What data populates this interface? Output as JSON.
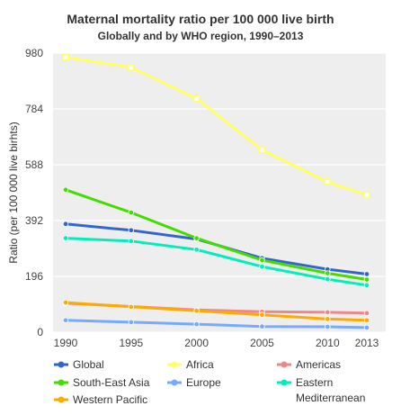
{
  "chart_data": {
    "type": "line",
    "title": "Maternal mortality ratio per 100 000 live birth",
    "subtitle": "Globally and by WHO region, 1990–2013",
    "ylabel": "Ratio (per 100 000 live birhts)",
    "xlabel": "",
    "x": [
      1990,
      1995,
      2000,
      2005,
      2010,
      2013
    ],
    "ylim": [
      0,
      980
    ],
    "yticks": [
      0,
      196,
      392,
      588,
      784,
      980
    ],
    "grid": true,
    "legend_position": "bottom",
    "series": [
      {
        "name": "Global",
        "color": "#3366cc",
        "marker": "circle",
        "values": [
          380,
          358,
          327,
          260,
          221,
          204
        ]
      },
      {
        "name": "Africa",
        "color": "#ffff66",
        "marker": "square",
        "values": [
          965,
          930,
          820,
          640,
          528,
          482
        ]
      },
      {
        "name": "Americas",
        "color": "#ee8888",
        "marker": "circle",
        "values": [
          102,
          90,
          78,
          72,
          70,
          67
        ]
      },
      {
        "name": "South-East Asia",
        "color": "#44dd00",
        "marker": "circle",
        "values": [
          500,
          420,
          330,
          253,
          207,
          185
        ]
      },
      {
        "name": "Europe",
        "color": "#77aaff",
        "marker": "circle",
        "values": [
          42,
          35,
          28,
          20,
          19,
          16
        ]
      },
      {
        "name": "Eastern Mediterranean",
        "color": "#00eebb",
        "marker": "circle",
        "values": [
          330,
          320,
          290,
          230,
          186,
          165
        ]
      },
      {
        "name": "Western Pacific",
        "color": "#ffaa00",
        "marker": "circle",
        "values": [
          104,
          89,
          75,
          61,
          46,
          42
        ]
      }
    ]
  },
  "legend": {
    "items": [
      {
        "label": "Global",
        "color": "#3366cc"
      },
      {
        "label": "Africa",
        "color": "#ffff66"
      },
      {
        "label": "Americas",
        "color": "#ee8888"
      },
      {
        "label": "South-East Asia",
        "color": "#44dd00"
      },
      {
        "label": "Europe",
        "color": "#77aaff"
      },
      {
        "label_line1": "Eastern",
        "label_line2": "Mediterranean",
        "color": "#00eebb"
      },
      {
        "label": "Western Pacific",
        "color": "#ffaa00"
      }
    ]
  }
}
